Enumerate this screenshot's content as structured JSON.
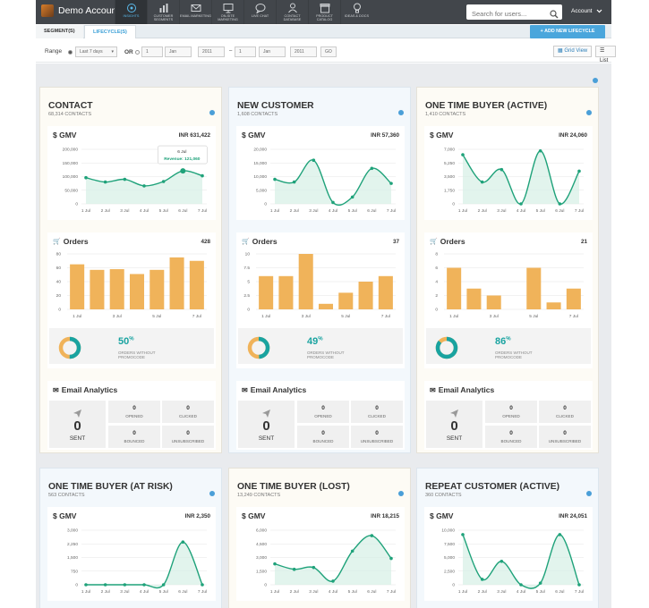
{
  "app": {
    "account_name": "Demo Account",
    "account_menu": "Account"
  },
  "nav": [
    {
      "label": "INSIGHTS",
      "icon": "insights-icon",
      "active": true
    },
    {
      "label": "CUSTOMER SEGMENTS",
      "icon": "bar-chart-icon"
    },
    {
      "label": "EMAIL MARKETING",
      "icon": "envelope-icon"
    },
    {
      "label": "ON-SITE MARKETING",
      "icon": "monitor-icon"
    },
    {
      "label": "LIVE CHAT",
      "icon": "chat-bubble-icon"
    },
    {
      "label": "CONTACT DATABASE",
      "icon": "person-icon"
    },
    {
      "label": "PRODUCT CATALOG",
      "icon": "box-icon"
    },
    {
      "label": "IDEAS & DOCS",
      "icon": "lightbulb-icon"
    }
  ],
  "search": {
    "placeholder": "Search for users..."
  },
  "tabs": {
    "segments": "SEGMENT(S)",
    "lifecycle": "LIFECYCLE(S)"
  },
  "add_button": "ADD NEW LIFECYCLE",
  "filter": {
    "range_label": "Range",
    "range_value": "Last 7 days",
    "or_label": "OR",
    "day_placeholder": "1",
    "month_placeholder": "Jan",
    "year_placeholder": "2011",
    "go_label": "GO",
    "grid_view": "Grid View",
    "list_view": "List View"
  },
  "labels": {
    "gmv": "$ GMV",
    "orders": "Orders",
    "email_analytics": "Email Analytics",
    "orders_without_promocode": "ORDERS WITHOUT PROMOCODE",
    "sent": "SENT",
    "opened": "OPENED",
    "clicked": "CLICKED",
    "bounced": "BOUNCED",
    "unsubscribed": "UNSUBSCRIBED"
  },
  "tooltip": {
    "date": "6 Jul",
    "text": "Revenue: 121,060"
  },
  "cards": [
    {
      "title": "CONTACT",
      "contacts": "68,314 CONTACTS",
      "gmv_total": "INR 631,422",
      "gmv_ticks": [
        "200,000",
        "150,000",
        "100,000",
        "50,000",
        "0"
      ],
      "orders_total": "428",
      "orders_ticks": [
        "80",
        "60",
        "40",
        "20",
        "0"
      ],
      "promo_pct": "50",
      "email": {
        "sent": "0",
        "opened": "0",
        "clicked": "0",
        "bounced": "0",
        "unsubscribed": "0"
      }
    },
    {
      "title": "NEW CUSTOMER",
      "contacts": "1,608 CONTACTS",
      "gmv_total": "INR 57,360",
      "gmv_ticks": [
        "20,000",
        "15,000",
        "10,000",
        "5,000",
        "0"
      ],
      "orders_total": "37",
      "orders_ticks": [
        "10",
        "7.5",
        "5",
        "2.5",
        "0"
      ],
      "promo_pct": "49",
      "email": {
        "sent": "0",
        "opened": "0",
        "clicked": "0",
        "bounced": "0",
        "unsubscribed": "0"
      }
    },
    {
      "title": "ONE TIME BUYER (ACTIVE)",
      "contacts": "1,410 CONTACTS",
      "gmv_total": "INR 24,060",
      "gmv_ticks": [
        "7,000",
        "5,250",
        "3,500",
        "1,750",
        "0"
      ],
      "orders_total": "21",
      "orders_ticks": [
        "8",
        "6",
        "4",
        "2",
        "0"
      ],
      "promo_pct": "86",
      "email": {
        "sent": "0",
        "opened": "0",
        "clicked": "0",
        "bounced": "0",
        "unsubscribed": "0"
      }
    },
    {
      "title": "ONE TIME BUYER (AT RISK)",
      "contacts": "563 CONTACTS",
      "gmv_total": "INR 2,350",
      "gmv_ticks": [
        "3,000",
        "2,250",
        "1,500",
        "750",
        "0"
      ]
    },
    {
      "title": "ONE TIME BUYER (LOST)",
      "contacts": "13,249 CONTACTS",
      "gmv_total": "INR 18,215",
      "gmv_ticks": [
        "6,000",
        "4,500",
        "3,000",
        "1,500",
        "0"
      ]
    },
    {
      "title": "REPEAT CUSTOMER (ACTIVE)",
      "contacts": "360 CONTACTS",
      "gmv_total": "INR 24,051",
      "gmv_ticks": [
        "10,000",
        "7,500",
        "5,000",
        "2,500",
        "0"
      ]
    }
  ],
  "chart_data": [
    {
      "type": "line",
      "title": "$ GMV",
      "card": "CONTACT",
      "x": [
        "1 Jul",
        "2 Jul",
        "3 Jul",
        "4 Jul",
        "5 Jul",
        "6 Jul",
        "7 Jul"
      ],
      "x_ticks": [
        "1 Jul",
        "2 Jul",
        "3 Jul",
        "4 Jul",
        "5 Jul",
        "6 Jul",
        "7 Jul"
      ],
      "values": [
        96000,
        80000,
        90000,
        66000,
        82000,
        121060,
        103000
      ],
      "ylim": [
        0,
        200000
      ],
      "color": "#1fa27a"
    },
    {
      "type": "line",
      "title": "$ GMV",
      "card": "NEW CUSTOMER",
      "x": [
        "1 Jul",
        "2 Jul",
        "3 Jul",
        "4 Jul",
        "5 Jul",
        "6 Jul",
        "7 Jul"
      ],
      "x_ticks": [
        "1 Jul",
        "2 Jul",
        "3 Jul",
        "4 Jul",
        "5 Jul",
        "6 Jul",
        "7 Jul"
      ],
      "values": [
        9000,
        8000,
        16000,
        500,
        2500,
        13000,
        7500
      ],
      "ylim": [
        0,
        20000
      ],
      "color": "#1fa27a"
    },
    {
      "type": "line",
      "title": "$ GMV",
      "card": "ONE TIME BUYER (ACTIVE)",
      "x": [
        "1 Jul",
        "2 Jul",
        "3 Jul",
        "4 Jul",
        "5 Jul",
        "6 Jul",
        "7 Jul"
      ],
      "x_ticks": [
        "1 Jul",
        "2 Jul",
        "3 Jul",
        "4 Jul",
        "5 Jul",
        "6 Jul",
        "7 Jul"
      ],
      "values": [
        6300,
        2800,
        4400,
        0,
        6800,
        0,
        4200
      ],
      "ylim": [
        0,
        7000
      ],
      "color": "#1fa27a"
    },
    {
      "type": "bar",
      "title": "Orders",
      "card": "CONTACT",
      "categories": [
        "1 Jul",
        "2 Jul",
        "3 Jul",
        "4 Jul",
        "5 Jul",
        "6 Jul",
        "7 Jul"
      ],
      "x_ticks": [
        "1 Jul",
        "3 Jul",
        "5 Jul",
        "7 Jul"
      ],
      "values": [
        65,
        57,
        58,
        51,
        57,
        75,
        70
      ],
      "ylim": [
        0,
        80
      ],
      "color": "#f0b35a"
    },
    {
      "type": "bar",
      "title": "Orders",
      "card": "NEW CUSTOMER",
      "categories": [
        "1 Jul",
        "2 Jul",
        "3 Jul",
        "4 Jul",
        "5 Jul",
        "6 Jul",
        "7 Jul"
      ],
      "x_ticks": [
        "1 Jul",
        "3 Jul",
        "5 Jul",
        "7 Jul"
      ],
      "values": [
        6,
        6,
        10,
        1,
        3,
        5,
        6
      ],
      "ylim": [
        0,
        10
      ],
      "color": "#f0b35a"
    },
    {
      "type": "bar",
      "title": "Orders",
      "card": "ONE TIME BUYER (ACTIVE)",
      "categories": [
        "1 Jul",
        "2 Jul",
        "3 Jul",
        "4 Jul",
        "5 Jul",
        "6 Jul",
        "7 Jul"
      ],
      "x_ticks": [
        "1 Jul",
        "3 Jul",
        "5 Jul",
        "7 Jul"
      ],
      "values": [
        6,
        3,
        2,
        0,
        6,
        1,
        3
      ],
      "ylim": [
        0,
        8
      ],
      "color": "#f0b35a"
    },
    {
      "type": "line",
      "title": "$ GMV",
      "card": "ONE TIME BUYER (AT RISK)",
      "x": [
        "1 Jul",
        "2 Jul",
        "3 Jul",
        "4 Jul",
        "5 Jul",
        "6 Jul",
        "7 Jul"
      ],
      "x_ticks": [
        "1 Jul",
        "2 Jul",
        "3 Jul",
        "4 Jul",
        "5 Jul",
        "6 Jul",
        "7 Jul"
      ],
      "values": [
        0,
        0,
        0,
        0,
        0,
        2350,
        0
      ],
      "ylim": [
        0,
        3000
      ],
      "color": "#1fa27a"
    },
    {
      "type": "line",
      "title": "$ GMV",
      "card": "ONE TIME BUYER (LOST)",
      "x": [
        "1 Jul",
        "2 Jul",
        "3 Jul",
        "4 Jul",
        "5 Jul",
        "6 Jul",
        "7 Jul"
      ],
      "x_ticks": [
        "1 Jul",
        "2 Jul",
        "3 Jul",
        "4 Jul",
        "5 Jul",
        "6 Jul",
        "7 Jul"
      ],
      "values": [
        2300,
        1700,
        1900,
        400,
        3700,
        5400,
        2900
      ],
      "ylim": [
        0,
        6000
      ],
      "color": "#1fa27a"
    },
    {
      "type": "line",
      "title": "$ GMV",
      "card": "REPEAT CUSTOMER (ACTIVE)",
      "x": [
        "1 Jul",
        "2 Jul",
        "3 Jul",
        "4 Jul",
        "5 Jul",
        "6 Jul",
        "7 Jul"
      ],
      "x_ticks": [
        "1 Jul",
        "2 Jul",
        "3 Jul",
        "4 Jul",
        "5 Jul",
        "6 Jul",
        "7 Jul"
      ],
      "values": [
        9200,
        1000,
        4300,
        0,
        300,
        9200,
        0
      ],
      "ylim": [
        0,
        10000
      ],
      "color": "#1fa27a"
    }
  ]
}
